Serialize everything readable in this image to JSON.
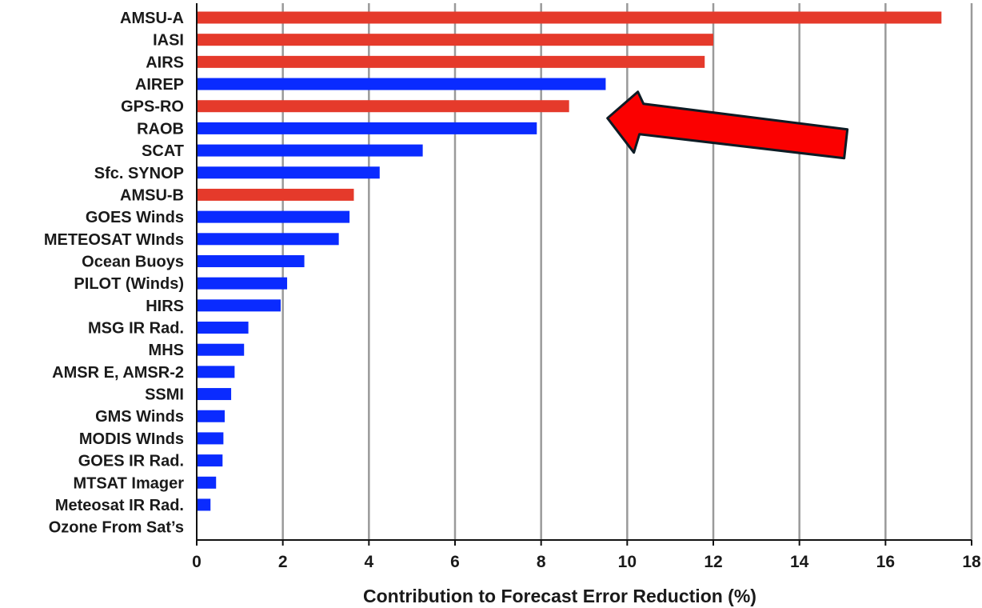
{
  "chart_data": {
    "type": "bar",
    "orientation": "horizontal",
    "categories": [
      "AMSU-A",
      "IASI",
      "AIRS",
      "AIREP",
      "GPS-RO",
      "RAOB",
      "SCAT",
      "Sfc. SYNOP",
      "AMSU-B",
      "GOES Winds",
      "METEOSAT WInds",
      "Ocean Buoys",
      "PILOT (Winds)",
      "HIRS",
      "MSG IR Rad.",
      "MHS",
      "AMSR E, AMSR-2",
      "SSMI",
      "GMS Winds",
      "MODIS WInds",
      "GOES IR Rad.",
      "MTSAT Imager",
      "Meteosat IR Rad.",
      "Ozone From Sat’s"
    ],
    "values": [
      17.3,
      12.0,
      11.8,
      9.5,
      8.65,
      7.9,
      5.25,
      4.25,
      3.65,
      3.55,
      3.3,
      2.5,
      2.1,
      1.95,
      1.2,
      1.1,
      0.88,
      0.8,
      0.65,
      0.62,
      0.6,
      0.45,
      0.32,
      0.0
    ],
    "bar_colors": [
      "red",
      "red",
      "red",
      "blue",
      "red",
      "blue",
      "blue",
      "blue",
      "red",
      "blue",
      "blue",
      "blue",
      "blue",
      "blue",
      "blue",
      "blue",
      "blue",
      "blue",
      "blue",
      "blue",
      "blue",
      "blue",
      "blue",
      "blue"
    ],
    "colors": {
      "red": "#e53a2b",
      "blue": "#0a2bff",
      "arrow": "#fb0000",
      "grid": "#9a9a9a",
      "axis": "#111111"
    },
    "xlabel": "Contribution to Forecast Error Reduction (%)",
    "ylabel": "",
    "xlim": [
      0,
      18
    ],
    "xticks": [
      0,
      2,
      4,
      6,
      8,
      10,
      12,
      14,
      16,
      18
    ],
    "grid": "vertical",
    "annotation": {
      "type": "arrow",
      "points_to": "GPS-RO"
    }
  }
}
